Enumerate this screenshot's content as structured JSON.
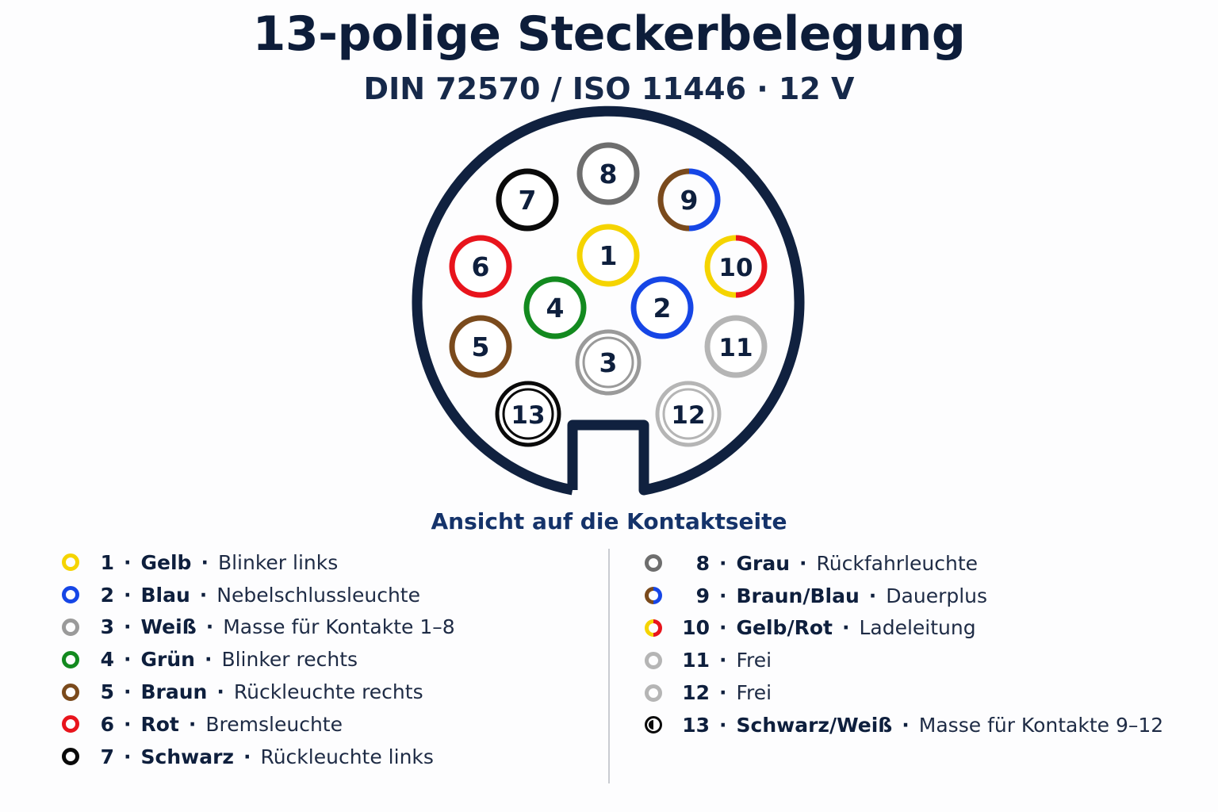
{
  "title": "13-polige Steckerbelegung",
  "subtitle": "DIN 72570 / ISO 11446 · 12 V",
  "view_caption": "Ansicht auf die Kontaktseite",
  "pins": [
    {
      "number": "1",
      "color_name": "Gelb",
      "function": "Blinker links",
      "colors": [
        "#f5d400"
      ],
      "style": "solid"
    },
    {
      "number": "2",
      "color_name": "Blau",
      "function": "Nebelschlussleuchte",
      "colors": [
        "#1646e6"
      ],
      "style": "solid"
    },
    {
      "number": "3",
      "color_name": "Weiß",
      "function": "Masse für Kontakte 1–8",
      "colors": [
        "#9a9a9a"
      ],
      "style": "double"
    },
    {
      "number": "4",
      "color_name": "Grün",
      "function": "Blinker rechts",
      "colors": [
        "#138a1f"
      ],
      "style": "solid"
    },
    {
      "number": "5",
      "color_name": "Braun",
      "function": "Rückleuchte rechts",
      "colors": [
        "#7a4a1c"
      ],
      "style": "solid"
    },
    {
      "number": "6",
      "color_name": "Rot",
      "function": "Bremsleuchte",
      "colors": [
        "#e8141c"
      ],
      "style": "solid"
    },
    {
      "number": "7",
      "color_name": "Schwarz",
      "function": "Rückleuchte links",
      "colors": [
        "#0a0a0a"
      ],
      "style": "solid"
    },
    {
      "number": "8",
      "color_name": "Grau",
      "function": "Rückfahrleuchte",
      "colors": [
        "#6e6e6e"
      ],
      "style": "solid"
    },
    {
      "number": "9",
      "color_name": "Braun/Blau",
      "function": "Dauerplus",
      "colors": [
        "#7a4a1c",
        "#1646e6"
      ],
      "style": "split"
    },
    {
      "number": "10",
      "color_name": "Gelb/Rot",
      "function": "Ladeleitung",
      "colors": [
        "#f5d400",
        "#e8141c"
      ],
      "style": "split"
    },
    {
      "number": "11",
      "color_name": "",
      "function": "Frei",
      "colors": [
        "#b5b5b5"
      ],
      "style": "solid"
    },
    {
      "number": "12",
      "color_name": "",
      "function": "Frei",
      "colors": [
        "#b5b5b5"
      ],
      "style": "double"
    },
    {
      "number": "13",
      "color_name": "Schwarz/Weiß",
      "function": "Masse für Kontakte 9–12",
      "colors": [
        "#0a0a0a"
      ],
      "style": "double"
    }
  ],
  "colors": {
    "outline": "#10213f",
    "text": "#0e1f3d"
  }
}
